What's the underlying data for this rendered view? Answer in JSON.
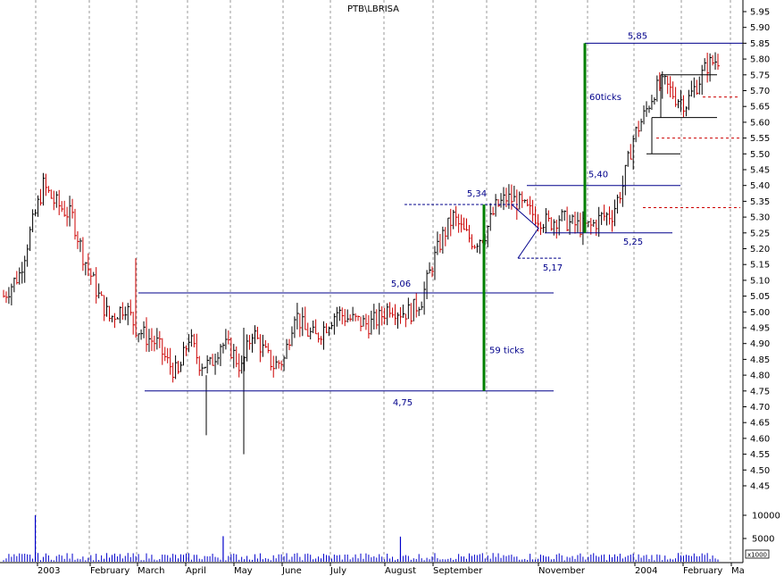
{
  "chart_data": {
    "type": "bar",
    "title": "PTB\\LBRISA",
    "subtype": "ohlc-bar-with-volume",
    "ylim": [
      4.45,
      5.95
    ],
    "yticks": [
      "5.95",
      "5.90",
      "5.85",
      "5.80",
      "5.75",
      "5.70",
      "5.65",
      "5.60",
      "5.55",
      "5.50",
      "5.45",
      "5.40",
      "5.35",
      "5.30",
      "5.25",
      "5.20",
      "5.15",
      "5.10",
      "5.05",
      "5.00",
      "4.95",
      "4.90",
      "4.85",
      "4.80",
      "4.75",
      "4.70",
      "4.65",
      "4.60",
      "4.55",
      "4.50",
      "4.45"
    ],
    "volume_ticks": [
      "10000",
      "5000"
    ],
    "volume_unit": "x1000",
    "xticks": [
      "2003",
      "February",
      "March",
      "April",
      "May",
      "June",
      "July",
      "August",
      "September",
      "November",
      "2004",
      "February",
      "Ma"
    ],
    "price_path": [
      [
        0,
        5.05
      ],
      [
        6,
        5.12
      ],
      [
        10,
        5.25
      ],
      [
        15,
        5.4
      ],
      [
        19,
        5.35
      ],
      [
        26,
        5.3
      ],
      [
        30,
        5.18
      ],
      [
        36,
        5.05
      ],
      [
        40,
        4.98
      ],
      [
        46,
        5.02
      ],
      [
        50,
        4.95
      ],
      [
        54,
        4.92
      ],
      [
        58,
        4.9
      ],
      [
        62,
        4.84
      ],
      [
        66,
        4.8
      ],
      [
        70,
        4.92
      ],
      [
        74,
        4.84
      ],
      [
        78,
        4.83
      ],
      [
        82,
        4.9
      ],
      [
        86,
        4.88
      ],
      [
        90,
        4.82
      ],
      [
        94,
        4.94
      ],
      [
        98,
        4.88
      ],
      [
        102,
        4.83
      ],
      [
        106,
        4.85
      ],
      [
        110,
        5.0
      ],
      [
        114,
        4.94
      ],
      [
        118,
        4.92
      ],
      [
        122,
        4.96
      ],
      [
        126,
        5.0
      ],
      [
        130,
        4.98
      ],
      [
        134,
        4.97
      ],
      [
        138,
        4.96
      ],
      [
        142,
        4.98
      ],
      [
        146,
        5.02
      ],
      [
        150,
        5.0
      ],
      [
        154,
        5.0
      ],
      [
        158,
        5.04
      ],
      [
        162,
        5.15
      ],
      [
        166,
        5.24
      ],
      [
        170,
        5.3
      ],
      [
        174,
        5.25
      ],
      [
        178,
        5.22
      ],
      [
        182,
        5.25
      ],
      [
        186,
        5.33
      ],
      [
        190,
        5.36
      ],
      [
        194,
        5.35
      ],
      [
        198,
        5.32
      ],
      [
        202,
        5.3
      ],
      [
        206,
        5.28
      ],
      [
        210,
        5.3
      ],
      [
        214,
        5.28
      ],
      [
        218,
        5.27
      ],
      [
        222,
        5.27
      ],
      [
        226,
        5.3
      ],
      [
        230,
        5.31
      ],
      [
        234,
        5.4
      ],
      [
        238,
        5.55
      ],
      [
        242,
        5.62
      ],
      [
        246,
        5.7
      ],
      [
        250,
        5.72
      ],
      [
        254,
        5.68
      ],
      [
        258,
        5.66
      ],
      [
        262,
        5.72
      ],
      [
        266,
        5.78
      ],
      [
        270,
        5.8
      ]
    ],
    "volume_spikes": [
      [
        12,
        10000
      ],
      [
        83,
        5500
      ],
      [
        150,
        5400
      ]
    ],
    "levels": [
      {
        "label": "5,06",
        "value": 5.06,
        "style": "solid"
      },
      {
        "label": "4,75",
        "value": 4.75,
        "style": "solid"
      },
      {
        "label": "5,34",
        "value": 5.34,
        "style": "dashed"
      },
      {
        "label": "5,17",
        "value": 5.17,
        "style": "dashed"
      },
      {
        "label": "5,40",
        "value": 5.4,
        "style": "solid"
      },
      {
        "label": "5,25",
        "value": 5.25,
        "style": "solid"
      },
      {
        "label": "5,85",
        "value": 5.85,
        "style": "solid"
      }
    ],
    "targets": [
      {
        "label": "59 ticks",
        "from": 4.75,
        "to": 5.34
      },
      {
        "label": "60ticks",
        "from": 5.25,
        "to": 5.85
      }
    ],
    "resistance_dashed": [
      5.68,
      5.55,
      5.33
    ],
    "colors": {
      "up": "#000000",
      "down": "#cc0000",
      "level": "#00008b",
      "target": "#007f00",
      "dashed": "#cc0000",
      "volume": "#0000cc",
      "grid": "#9a9a9a"
    }
  }
}
